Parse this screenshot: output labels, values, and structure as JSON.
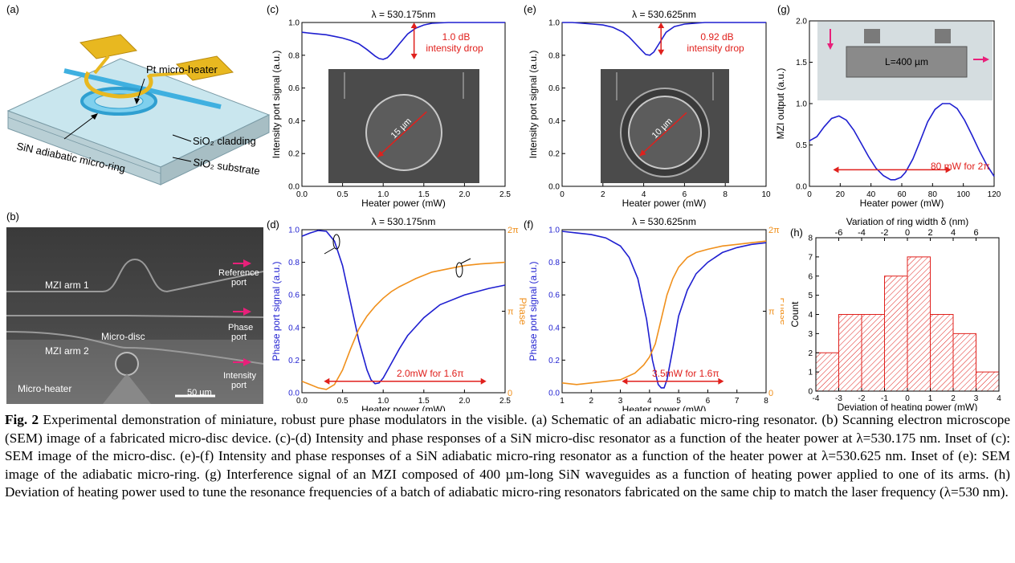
{
  "panels": {
    "a": {
      "letter": "(a)",
      "heater_label": "Pt micro-heater",
      "cladding_label": "SiO₂ cladding",
      "ring_label": "SiN adiabatic micro-ring",
      "substrate_label": "SiO₂ substrate"
    },
    "b": {
      "letter": "(b)",
      "arm1": "MZI arm 1",
      "arm2": "MZI arm 2",
      "disc": "Micro-disc",
      "heater": "Micro-heater",
      "scale": "50 µm",
      "ref_port_1": "Reference",
      "ref_port_2": "port",
      "phase_port_1": "Phase",
      "phase_port_2": "port",
      "int_port_1": "Intensity",
      "int_port_2": "port"
    },
    "c": {
      "letter": "(c)",
      "title": "λ = 530.175nm",
      "annot1": "1.0 dB",
      "annot2": "intensity drop",
      "inset_scale": "15 µm"
    },
    "d": {
      "letter": "(d)",
      "title": "λ = 530.175nm",
      "annot": "2.0mW for 1.6π"
    },
    "e": {
      "letter": "(e)",
      "title": "λ = 530.625nm",
      "annot1": "0.92 dB",
      "annot2": "intensity drop",
      "inset_scale": "10 µm"
    },
    "f": {
      "letter": "(f)",
      "title": "λ = 530.625nm",
      "annot": "3.5mW for 1.6π"
    },
    "g": {
      "letter": "(g)",
      "annot": "80 mW for 2π",
      "inset_label": "L=400 µm"
    },
    "h": {
      "letter": "(h)"
    }
  },
  "chart_data": [
    {
      "id": "c",
      "type": "line",
      "title": "λ = 530.175nm",
      "xlabel": "Heater power (mW)",
      "ylabel": "Intensity port signal (a.u.)",
      "xlim": [
        0,
        2.5
      ],
      "ylim": [
        0,
        1.0
      ],
      "xticks": [
        "0.0",
        "0.5",
        "1.0",
        "1.5",
        "2.0",
        "2.5"
      ],
      "yticks": [
        "0.0",
        "0.2",
        "0.4",
        "0.6",
        "0.8",
        "1.0"
      ],
      "series": [
        {
          "name": "Intensity",
          "color": "#1f1fd0",
          "x": [
            0,
            0.1,
            0.2,
            0.3,
            0.4,
            0.5,
            0.6,
            0.7,
            0.8,
            0.9,
            0.95,
            1.0,
            1.05,
            1.1,
            1.2,
            1.3,
            1.4,
            1.5,
            1.6,
            1.8,
            2.0,
            2.2,
            2.5
          ],
          "y": [
            0.94,
            0.935,
            0.93,
            0.925,
            0.915,
            0.905,
            0.89,
            0.87,
            0.835,
            0.795,
            0.78,
            0.775,
            0.785,
            0.81,
            0.87,
            0.93,
            0.965,
            0.985,
            0.995,
            1.0,
            1.0,
            1.0,
            1.0
          ]
        }
      ]
    },
    {
      "id": "d",
      "type": "line",
      "title": "λ = 530.175nm",
      "xlabel": "Heater power (mW)",
      "ylabel": "Phase port signal (a.u.)",
      "y2label": "Phase",
      "xlim": [
        0,
        2.5
      ],
      "ylim": [
        0,
        1.0
      ],
      "xticks": [
        "0.0",
        "0.5",
        "1.0",
        "1.5",
        "2.0",
        "2.5"
      ],
      "yticks": [
        "0.0",
        "0.2",
        "0.4",
        "0.6",
        "0.8",
        "1.0"
      ],
      "y2ticks": [
        "0",
        "π",
        "2π"
      ],
      "series": [
        {
          "name": "Signal",
          "color": "#1f1fd0",
          "x": [
            0,
            0.1,
            0.2,
            0.3,
            0.4,
            0.5,
            0.6,
            0.7,
            0.8,
            0.85,
            0.9,
            0.95,
            1.0,
            1.1,
            1.2,
            1.3,
            1.5,
            1.7,
            2.0,
            2.3,
            2.5
          ],
          "y": [
            0.96,
            0.98,
            0.995,
            0.99,
            0.93,
            0.78,
            0.55,
            0.32,
            0.14,
            0.08,
            0.055,
            0.06,
            0.09,
            0.18,
            0.27,
            0.35,
            0.46,
            0.54,
            0.6,
            0.64,
            0.66
          ]
        },
        {
          "name": "Phase",
          "color": "#f0901c",
          "axis": "right",
          "x": [
            0,
            0.1,
            0.2,
            0.3,
            0.4,
            0.5,
            0.6,
            0.7,
            0.8,
            0.9,
            1.0,
            1.1,
            1.2,
            1.4,
            1.6,
            1.8,
            2.0,
            2.2,
            2.5
          ],
          "y": [
            0.07,
            0.05,
            0.03,
            0.02,
            0.05,
            0.14,
            0.27,
            0.39,
            0.47,
            0.53,
            0.58,
            0.62,
            0.65,
            0.7,
            0.74,
            0.76,
            0.78,
            0.79,
            0.8
          ]
        }
      ]
    },
    {
      "id": "e",
      "type": "line",
      "title": "λ = 530.625nm",
      "xlabel": "Heater power (mW)",
      "ylabel": "Intensity port signal (a.u.)",
      "xlim": [
        0,
        10
      ],
      "ylim": [
        0,
        1.0
      ],
      "xticks": [
        "0",
        "2",
        "4",
        "6",
        "8",
        "10"
      ],
      "yticks": [
        "0.0",
        "0.2",
        "0.4",
        "0.6",
        "0.8",
        "1.0"
      ],
      "series": [
        {
          "name": "Intensity",
          "color": "#1f1fd0",
          "x": [
            0,
            0.5,
            1,
            1.5,
            2,
            2.5,
            3,
            3.3,
            3.6,
            3.9,
            4.1,
            4.3,
            4.5,
            4.8,
            5.1,
            5.5,
            6,
            7,
            8,
            9,
            10
          ],
          "y": [
            1.0,
            1.0,
            0.995,
            0.99,
            0.985,
            0.97,
            0.94,
            0.91,
            0.87,
            0.83,
            0.805,
            0.8,
            0.82,
            0.88,
            0.94,
            0.975,
            0.99,
            1.0,
            1.0,
            1.0,
            1.0
          ]
        }
      ]
    },
    {
      "id": "f",
      "type": "line",
      "title": "λ = 530.625nm",
      "xlabel": "Heater power (mW)",
      "ylabel": "Phase port signal (a.u.)",
      "y2label": "Phase",
      "xlim": [
        1,
        8
      ],
      "ylim": [
        0,
        1.0
      ],
      "xticks": [
        "1",
        "2",
        "3",
        "4",
        "5",
        "6",
        "7",
        "8"
      ],
      "yticks": [
        "0.0",
        "0.2",
        "0.4",
        "0.6",
        "0.8",
        "1.0"
      ],
      "y2ticks": [
        "0",
        "π",
        "2π"
      ],
      "series": [
        {
          "name": "Signal",
          "color": "#1f1fd0",
          "x": [
            1,
            1.5,
            2,
            2.5,
            3,
            3.3,
            3.6,
            3.9,
            4.1,
            4.3,
            4.4,
            4.5,
            4.6,
            4.8,
            5.0,
            5.3,
            5.6,
            6,
            6.5,
            7,
            7.5,
            8
          ],
          "y": [
            0.99,
            0.98,
            0.97,
            0.95,
            0.9,
            0.83,
            0.7,
            0.45,
            0.2,
            0.05,
            0.03,
            0.03,
            0.08,
            0.27,
            0.47,
            0.63,
            0.73,
            0.8,
            0.86,
            0.89,
            0.91,
            0.92
          ]
        },
        {
          "name": "Phase",
          "color": "#f0901c",
          "axis": "right",
          "x": [
            1,
            1.5,
            2,
            2.5,
            3,
            3.5,
            3.8,
            4.0,
            4.2,
            4.4,
            4.6,
            4.8,
            5.0,
            5.3,
            5.6,
            6,
            6.5,
            7,
            7.5,
            8
          ],
          "y": [
            0.06,
            0.05,
            0.06,
            0.07,
            0.08,
            0.12,
            0.17,
            0.22,
            0.3,
            0.45,
            0.6,
            0.7,
            0.77,
            0.83,
            0.86,
            0.88,
            0.9,
            0.91,
            0.92,
            0.93
          ]
        }
      ]
    },
    {
      "id": "g",
      "type": "line",
      "xlabel": "Heater power (mW)",
      "ylabel": "MZI output (a.u.)",
      "xlim": [
        0,
        125
      ],
      "ylim": [
        0,
        2.0
      ],
      "xticks": [
        "0",
        "20",
        "40",
        "60",
        "80",
        "100",
        "120"
      ],
      "yticks": [
        "0.0",
        "0.5",
        "1.0",
        "1.5",
        "2.0"
      ],
      "series": [
        {
          "name": "MZI",
          "color": "#1f1fd0",
          "x": [
            0,
            5,
            10,
            15,
            20,
            25,
            30,
            35,
            40,
            45,
            50,
            55,
            58,
            62,
            65,
            70,
            75,
            80,
            85,
            90,
            95,
            100,
            105,
            110,
            115,
            120,
            125
          ],
          "y": [
            0.55,
            0.6,
            0.72,
            0.82,
            0.85,
            0.8,
            0.68,
            0.52,
            0.36,
            0.22,
            0.13,
            0.08,
            0.08,
            0.11,
            0.17,
            0.33,
            0.55,
            0.78,
            0.93,
            1.0,
            1.0,
            0.94,
            0.8,
            0.62,
            0.43,
            0.26,
            0.12
          ]
        }
      ]
    },
    {
      "id": "h",
      "type": "bar",
      "xlabel": "Deviation of heating power (mW)",
      "ylabel": "Count",
      "x2label": "Variation of ring width δ (nm)",
      "xlim": [
        -4,
        4
      ],
      "ylim": [
        0,
        8
      ],
      "xticks": [
        "-4",
        "-3",
        "-2",
        "-1",
        "0",
        "1",
        "2",
        "3",
        "4"
      ],
      "x2ticks": [
        "-6",
        "-4",
        "-2",
        "0",
        "2",
        "4",
        "6"
      ],
      "yticks": [
        "0",
        "1",
        "2",
        "3",
        "4",
        "5",
        "6",
        "7",
        "8"
      ],
      "bin_edges": [
        -4,
        -3,
        -2,
        -1,
        0,
        1,
        2,
        3,
        4
      ],
      "values": [
        2,
        4,
        4,
        6,
        7,
        4,
        3,
        1
      ]
    }
  ],
  "caption": {
    "fig_label": "Fig. 2",
    "text": " Experimental demonstration of miniature, robust pure phase modulators in the visible. (a) Schematic of an adiabatic micro-ring resonator. (b) Scanning electron microscope (SEM) image of a fabricated micro-disc device. (c)-(d) Intensity and phase responses of a SiN micro-disc resonator as a function of the heater power at λ=530.175 nm. Inset of (c): SEM image of the micro-disc. (e)-(f) Intensity and phase responses of a SiN adiabatic micro-ring resonator as a function of the heater power at λ=530.625 nm. Inset of (e): SEM image of the adiabatic micro-ring. (g) Interference signal of an MZI composed of 400 µm-long SiN waveguides as a function of heating power applied to one of its arms. (h) Deviation of heating power used to tune the resonance frequencies of a batch of adiabatic micro-ring resonators fabricated on the same chip to match the laser frequency (λ=530 nm)."
  },
  "colors": {
    "blue": "#1f1fd0",
    "orange": "#f0901c",
    "red": "#e0201c",
    "gold": "#e8b820",
    "ring": "#4fc3e8"
  }
}
